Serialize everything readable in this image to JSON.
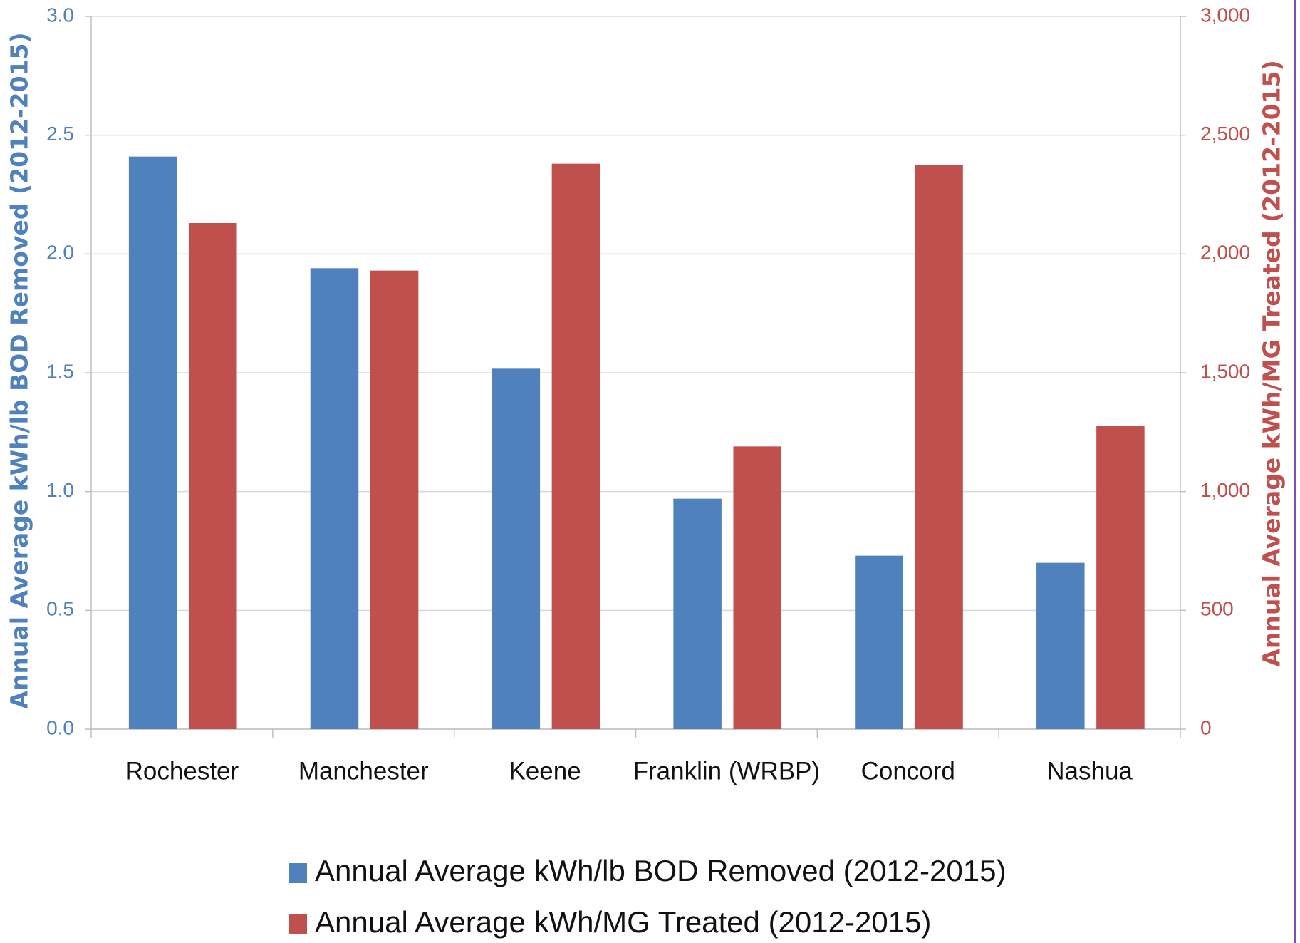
{
  "chart_data": {
    "type": "bar",
    "y_label": "Annual Average kWh/lb BOD Removed (2012-2015)",
    "y2_label": "Annual Average kWh/MG Treated (2012-2015)",
    "categories": [
      "Rochester",
      "Manchester",
      "Keene",
      "Franklin (WRBP)",
      "Concord",
      "Nashua"
    ],
    "series": [
      {
        "name": "Annual Average kWh/lb BOD Removed (2012-2015)",
        "color": "#4f81bd",
        "values": [
          2.41,
          1.94,
          1.52,
          0.97,
          0.73,
          0.7
        ]
      },
      {
        "name": "Annual Average kWh/MG Treated (2012-2015)",
        "color": "#c0504d",
        "axis": "y2",
        "values": [
          2130,
          1930,
          2380,
          1190,
          2375,
          1275
        ]
      }
    ],
    "ylim": [
      0,
      3
    ],
    "yticks": [
      {
        "value": 0,
        "label": "0.0"
      },
      0.5,
      {
        "value": 1,
        "label": "1.0"
      },
      1.5,
      {
        "value": 2,
        "label": "2.0"
      },
      2.5,
      {
        "value": 3,
        "label": "3.0"
      }
    ],
    "y2lim": [
      0,
      3000
    ],
    "y2ticks": [
      0,
      500,
      {
        "value": 1000,
        "label": "1,000"
      },
      {
        "value": 1500,
        "label": "1,500"
      },
      {
        "value": 2000,
        "label": "2,000"
      },
      {
        "value": 2500,
        "label": "2,500"
      },
      {
        "value": 3000,
        "label": "3,000"
      }
    ],
    "grid": true,
    "legend": "bottom"
  }
}
